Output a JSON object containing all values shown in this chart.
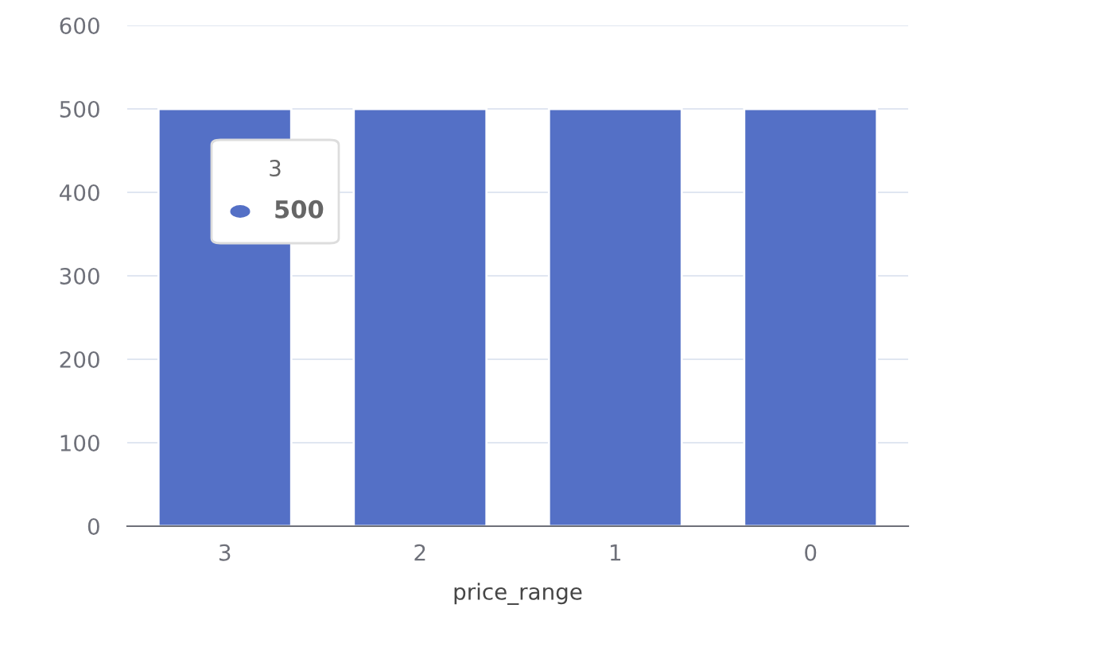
{
  "chart_data": {
    "type": "bar",
    "xlabel": "price_range",
    "categories": [
      "3",
      "2",
      "1",
      "0"
    ],
    "values": [
      500,
      500,
      500,
      500
    ],
    "color": "#5470c6",
    "ylim": [
      0,
      600
    ],
    "yticks": [
      0,
      100,
      200,
      300,
      400,
      500,
      600
    ],
    "grid": "y",
    "annotations": [
      "3",
      "500"
    ]
  }
}
